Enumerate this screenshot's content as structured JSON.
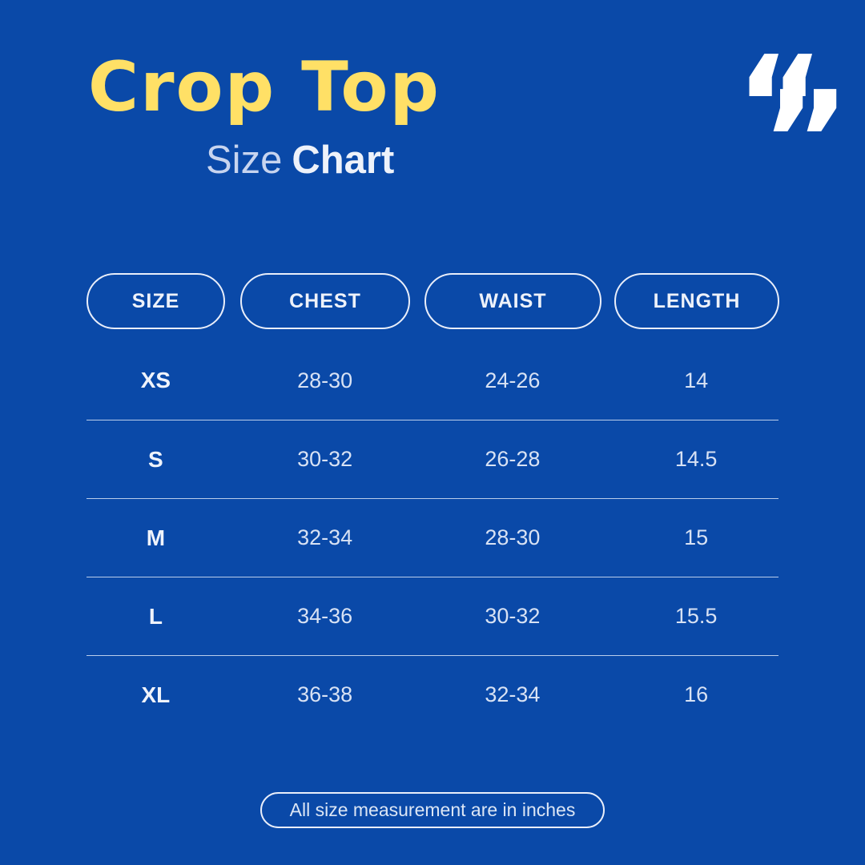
{
  "page": {
    "background_color": "#0a49a8"
  },
  "header": {
    "title": "Crop Top",
    "subtitle": {
      "regular": "Size",
      "bold": "Chart"
    },
    "quote_icon": {
      "open": "“",
      "close": "”"
    }
  },
  "chart_data": {
    "type": "table",
    "title": "Crop Top Size Chart",
    "columns": [
      "SIZE",
      "CHEST",
      "WAIST",
      "LENGTH"
    ],
    "rows": [
      [
        "XS",
        "28-30",
        "24-26",
        "14"
      ],
      [
        "S",
        "30-32",
        "26-28",
        "14.5"
      ],
      [
        "M",
        "32-34",
        "28-30",
        "15"
      ],
      [
        "L",
        "34-36",
        "30-32",
        "15.5"
      ],
      [
        "XL",
        "36-38",
        "32-34",
        "16"
      ]
    ],
    "units": "inches"
  },
  "footnote": {
    "label": "All size measurement are in inches"
  },
  "colors": {
    "background": "#0a49a8",
    "title_yellow": "#ffe066",
    "subtitle_light": "#c7d4ef",
    "text_white": "#eef2fa",
    "table_text": "#d8e2f4",
    "divider": "#cddbf2",
    "pill_border": "#e9eefa",
    "quote_icon": "#ffffff"
  }
}
